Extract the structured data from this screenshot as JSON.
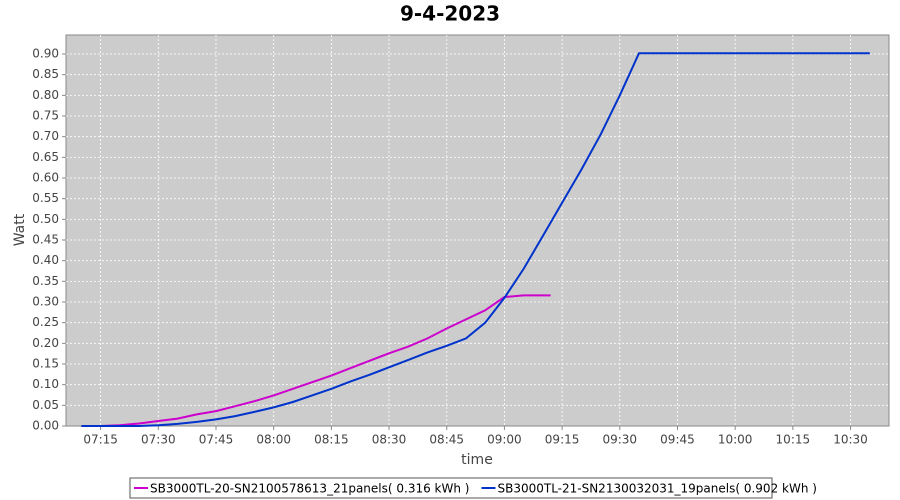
{
  "chart_data": {
    "type": "line",
    "title": "9-4-2023",
    "x_label": "time",
    "y_label": "Watt",
    "xlim": [
      "07:06",
      "10:40"
    ],
    "xticks": [
      "07:15",
      "07:30",
      "07:45",
      "08:00",
      "08:15",
      "08:30",
      "08:45",
      "09:00",
      "09:15",
      "09:30",
      "09:45",
      "10:00",
      "10:15",
      "10:30"
    ],
    "ylim": [
      0,
      0.946
    ],
    "yticks": [
      {
        "value": 0,
        "label": "0.00"
      },
      {
        "value": 0.05,
        "label": "0.05"
      },
      {
        "value": 0.1,
        "label": "0.10"
      },
      {
        "value": 0.15,
        "label": "0.15"
      },
      {
        "value": 0.2,
        "label": "0.20"
      },
      {
        "value": 0.25,
        "label": "0.25"
      },
      {
        "value": 0.3,
        "label": "0.30"
      },
      {
        "value": 0.35,
        "label": "0.35"
      },
      {
        "value": 0.4,
        "label": "0.40"
      },
      {
        "value": 0.45,
        "label": "0.45"
      },
      {
        "value": 0.5,
        "label": "0.50"
      },
      {
        "value": 0.55,
        "label": "0.55"
      },
      {
        "value": 0.6,
        "label": "0.60"
      },
      {
        "value": 0.65,
        "label": "0.65"
      },
      {
        "value": 0.7,
        "label": "0.70"
      },
      {
        "value": 0.75,
        "label": "0.75"
      },
      {
        "value": 0.8,
        "label": "0.80"
      },
      {
        "value": 0.85,
        "label": "0.85"
      },
      {
        "value": 0.9,
        "label": "0.90"
      }
    ],
    "grid": true,
    "legend": "bottom",
    "series": [
      {
        "name": "SB3000TL-20-SN2100578613_21panels( 0.316 kWh )",
        "color": "#cc00cc",
        "x": [
          "07:10",
          "07:15",
          "07:20",
          "07:25",
          "07:30",
          "07:35",
          "07:40",
          "07:45",
          "07:50",
          "07:55",
          "08:00",
          "08:05",
          "08:10",
          "08:15",
          "08:20",
          "08:25",
          "08:30",
          "08:35",
          "08:40",
          "08:45",
          "08:50",
          "08:55",
          "09:00",
          "09:05",
          "09:10",
          "09:12"
        ],
        "values": [
          0,
          0,
          0.002,
          0.006,
          0.012,
          0.018,
          0.028,
          0.036,
          0.048,
          0.06,
          0.074,
          0.09,
          0.106,
          0.122,
          0.14,
          0.158,
          0.176,
          0.192,
          0.212,
          0.236,
          0.258,
          0.28,
          0.312,
          0.316,
          0.316,
          0.316
        ]
      },
      {
        "name": "SB3000TL-21-SN2130032031_19panels( 0.902 kWh )",
        "color": "#0033cc",
        "x": [
          "07:10",
          "07:15",
          "07:20",
          "07:25",
          "07:30",
          "07:35",
          "07:40",
          "07:45",
          "07:50",
          "07:55",
          "08:00",
          "08:05",
          "08:10",
          "08:15",
          "08:20",
          "08:25",
          "08:30",
          "08:35",
          "08:40",
          "08:45",
          "08:50",
          "08:55",
          "09:00",
          "09:05",
          "09:10",
          "09:15",
          "09:20",
          "09:25",
          "09:30",
          "09:35",
          "09:40",
          "09:45",
          "09:50",
          "09:55",
          "10:00",
          "10:05",
          "10:10",
          "10:15",
          "10:20",
          "10:25",
          "10:30",
          "10:35"
        ],
        "values": [
          0,
          0,
          0,
          0,
          0.002,
          0.005,
          0.01,
          0.016,
          0.024,
          0.034,
          0.045,
          0.058,
          0.074,
          0.09,
          0.108,
          0.124,
          0.142,
          0.16,
          0.178,
          0.194,
          0.212,
          0.25,
          0.31,
          0.38,
          0.46,
          0.54,
          0.62,
          0.705,
          0.8,
          0.902,
          0.902,
          0.902,
          0.902,
          0.902,
          0.902,
          0.902,
          0.902,
          0.902,
          0.902,
          0.902,
          0.902,
          0.902
        ]
      }
    ]
  }
}
